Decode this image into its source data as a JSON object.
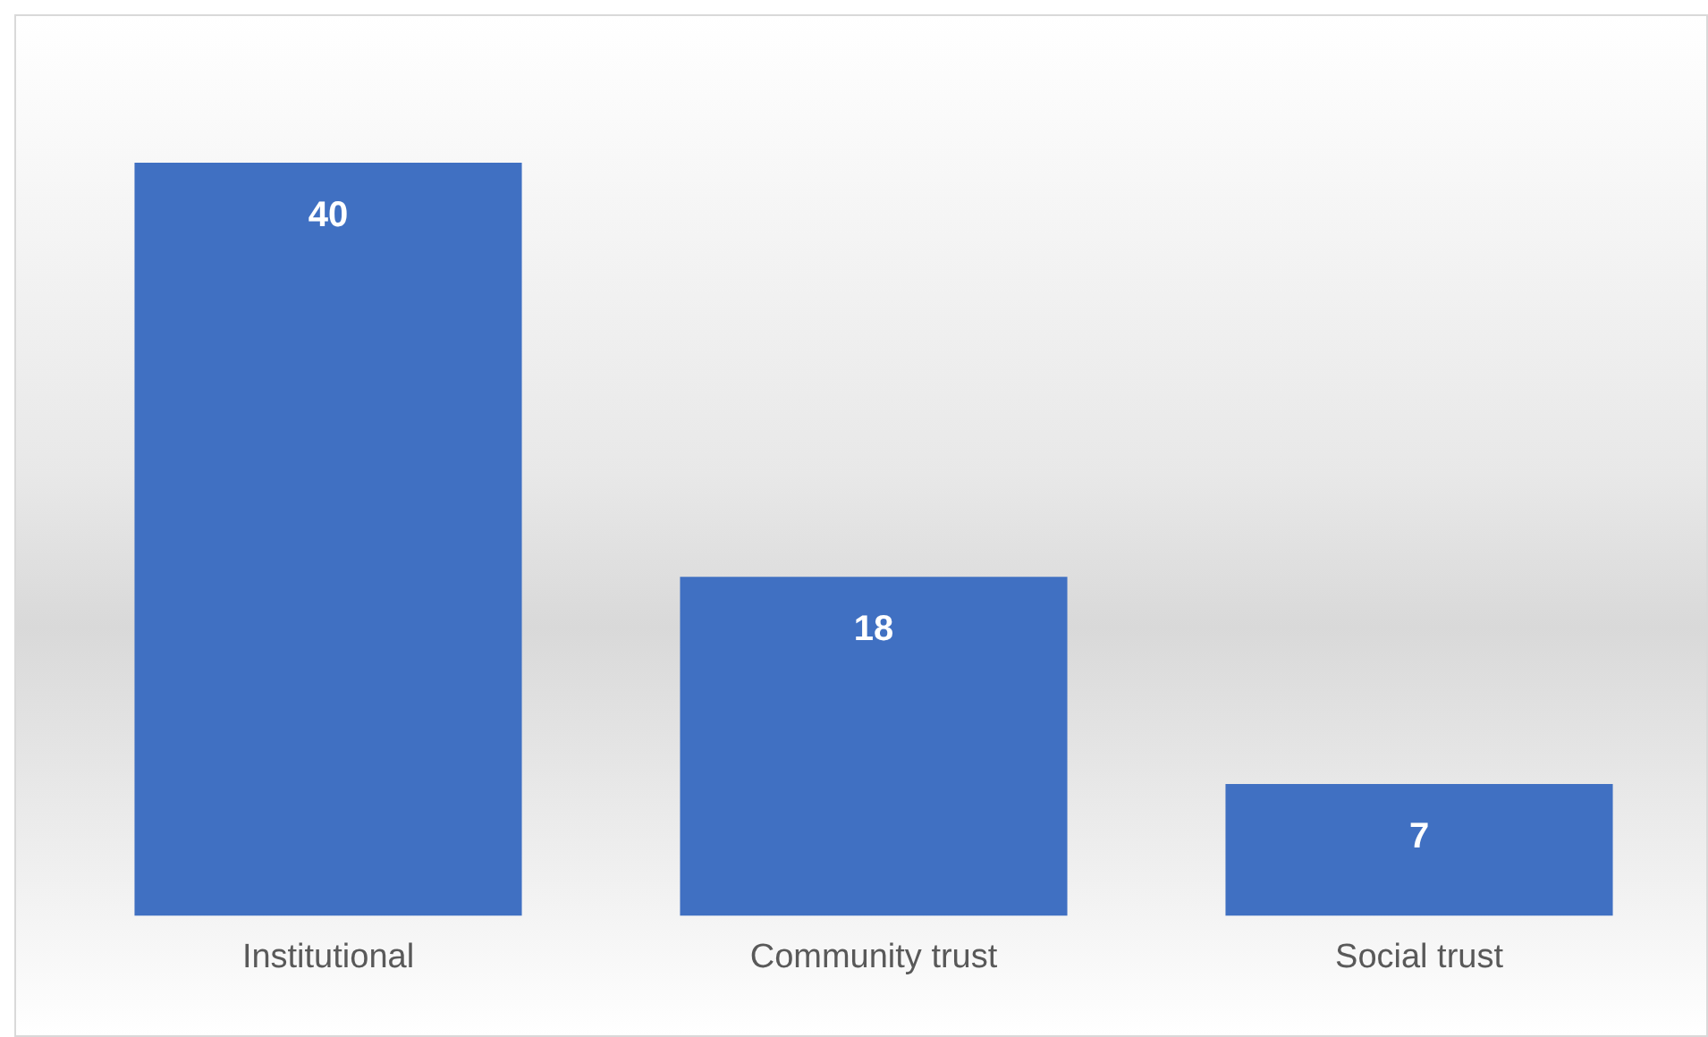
{
  "chart_data": {
    "type": "bar",
    "categories": [
      "Institutional",
      "Community trust",
      "Social trust"
    ],
    "values": [
      40,
      18,
      7
    ],
    "color": "#4070c2",
    "data_labels": true,
    "grid": false,
    "legend": false
  }
}
